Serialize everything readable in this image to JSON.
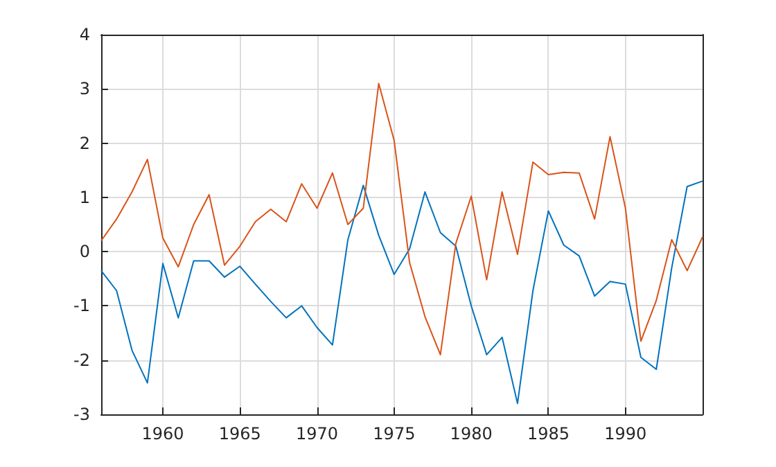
{
  "chart_data": {
    "type": "line",
    "x": [
      1956,
      1957,
      1958,
      1959,
      1960,
      1961,
      1962,
      1963,
      1964,
      1965,
      1966,
      1967,
      1968,
      1969,
      1970,
      1971,
      1972,
      1973,
      1974,
      1975,
      1976,
      1977,
      1978,
      1979,
      1980,
      1981,
      1982,
      1983,
      1984,
      1985,
      1986,
      1987,
      1988,
      1989,
      1990,
      1991,
      1992,
      1993,
      1994,
      1995
    ],
    "series": [
      {
        "color": "#0072bd",
        "values": [
          -0.35,
          -0.72,
          -1.82,
          -2.42,
          -0.22,
          -1.22,
          -0.17,
          -0.17,
          -0.47,
          -0.27,
          -0.6,
          -0.92,
          -1.22,
          -1.0,
          -1.4,
          -1.72,
          0.22,
          1.22,
          0.3,
          -0.42,
          0.05,
          1.1,
          0.35,
          0.1,
          -1.0,
          -1.9,
          -1.58,
          -2.8,
          -0.72,
          0.75,
          0.12,
          -0.08,
          -0.82,
          -0.55,
          -0.6,
          -1.95,
          -2.17,
          -0.3,
          1.2,
          1.3
        ]
      },
      {
        "color": "#d95319",
        "values": [
          0.2,
          0.6,
          1.1,
          1.7,
          0.25,
          -0.28,
          0.5,
          1.05,
          -0.25,
          0.1,
          0.55,
          0.78,
          0.55,
          1.25,
          0.8,
          1.45,
          0.5,
          0.8,
          3.1,
          2.05,
          -0.2,
          -1.2,
          -1.9,
          0.15,
          1.02,
          -0.52,
          1.1,
          -0.05,
          1.65,
          1.42,
          1.46,
          1.45,
          0.6,
          2.12,
          0.8,
          -1.65,
          -0.9,
          0.22,
          -0.35,
          0.27
        ]
      }
    ],
    "xlim": [
      1956,
      1995
    ],
    "xticks": [
      1960,
      1965,
      1970,
      1975,
      1980,
      1985,
      1990
    ],
    "ylim": [
      -3,
      4
    ],
    "yticks": [
      -3,
      -2,
      -1,
      0,
      1,
      2,
      3,
      4
    ],
    "grid": true,
    "marker": "none",
    "line_style": "solid"
  }
}
